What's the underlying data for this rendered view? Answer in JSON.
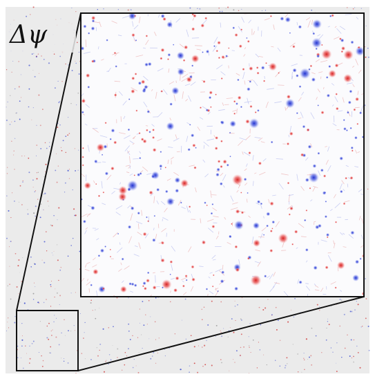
{
  "label": "Δψ"
}
